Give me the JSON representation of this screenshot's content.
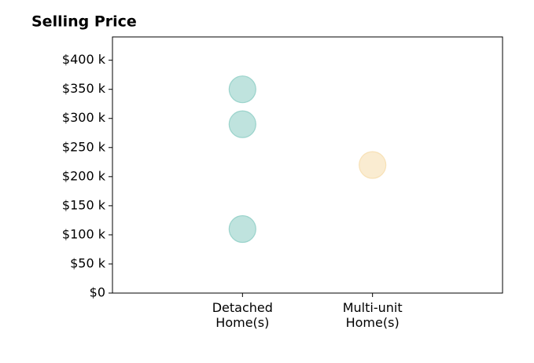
{
  "chart_data": {
    "type": "scatter",
    "title": "Selling Price",
    "xlim": [
      0,
      3
    ],
    "xticks": [
      {
        "value": 1,
        "label": "Detached\nHome(s)"
      },
      {
        "value": 2,
        "label": "Multi-unit\nHome(s)"
      }
    ],
    "ylim": [
      0,
      440000
    ],
    "yticks": [
      {
        "value": 0,
        "label": "$0"
      },
      {
        "value": 50000,
        "label": "$50 k"
      },
      {
        "value": 100000,
        "label": "$100 k"
      },
      {
        "value": 150000,
        "label": "$150 k"
      },
      {
        "value": 200000,
        "label": "$200 k"
      },
      {
        "value": 250000,
        "label": "$250 k"
      },
      {
        "value": 300000,
        "label": "$300 k"
      },
      {
        "value": 350000,
        "label": "$350 k"
      },
      {
        "value": 400000,
        "label": "$400 k"
      }
    ],
    "series": [
      {
        "color": "#7fc7bd",
        "x": [
          1,
          1,
          1
        ],
        "values": [
          350000,
          290000,
          110000
        ]
      },
      {
        "color": "#f5d9a3",
        "x": [
          2
        ],
        "values": [
          220000
        ]
      }
    ]
  }
}
